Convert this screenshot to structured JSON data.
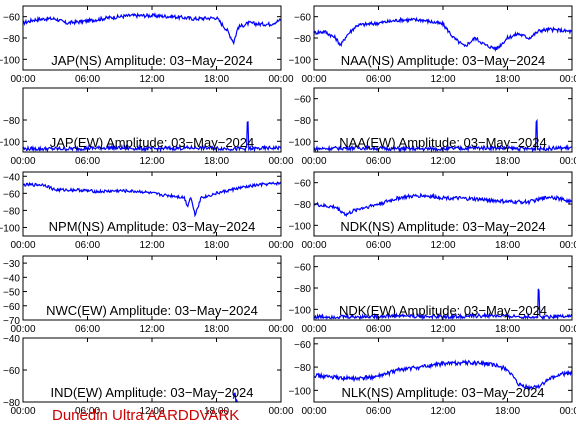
{
  "footer_text": "Dunedin Ultra AARDDVARK",
  "colors": {
    "trace": "#0000ff",
    "axis": "#000000",
    "footer": "#cc0000",
    "background": "#ffffff"
  },
  "chart_data": [
    {
      "type": "line",
      "title": "JAP(NS) Amplitude: 03−May−2024",
      "x_ticks": [
        "00:00",
        "06:00",
        "12:00",
        "18:00",
        "00:00"
      ],
      "xlim_hours": [
        0,
        24
      ],
      "ylim": [
        -110,
        -50
      ],
      "y_ticks": [
        -100,
        -80,
        -60
      ],
      "y_tick_labels": [
        "−100",
        "−80",
        "−60"
      ],
      "series": [
        {
          "x": [
            0,
            1,
            2,
            3,
            4,
            6,
            8,
            10,
            12,
            14,
            16,
            18,
            19,
            19.6,
            20,
            21,
            22,
            23,
            24
          ],
          "values": [
            -66,
            -63,
            -62,
            -62,
            -66,
            -64,
            -61,
            -59,
            -59,
            -60,
            -62,
            -61,
            -73,
            -84,
            -70,
            -66,
            -67,
            -67,
            -63
          ]
        }
      ]
    },
    {
      "type": "line",
      "title": "NAA(NS) Amplitude: 03−May−2024",
      "x_ticks": [
        "00:00",
        "06:00",
        "12:00",
        "18:00",
        "00:00"
      ],
      "xlim_hours": [
        0,
        24
      ],
      "ylim": [
        -110,
        -50
      ],
      "y_ticks": [
        -100,
        -80,
        -60
      ],
      "y_tick_labels": [
        "−100",
        "−80",
        "−60"
      ],
      "series": [
        {
          "x": [
            0,
            1,
            2,
            2.5,
            3,
            4,
            6,
            8,
            10,
            12,
            13,
            14,
            15,
            16,
            17,
            18,
            19,
            20,
            21,
            22,
            24
          ],
          "values": [
            -75,
            -74,
            -80,
            -87,
            -78,
            -68,
            -66,
            -63,
            -63,
            -67,
            -80,
            -88,
            -80,
            -87,
            -90,
            -80,
            -76,
            -80,
            -73,
            -72,
            -74
          ]
        }
      ]
    },
    {
      "type": "line",
      "title": "JAP(EW) Amplitude: 03−May−2024",
      "x_ticks": [
        "00:00",
        "06:00",
        "12:00",
        "18:00",
        "00:00"
      ],
      "xlim_hours": [
        0,
        24
      ],
      "ylim": [
        -110,
        -50
      ],
      "y_ticks": [
        -100,
        -80
      ],
      "y_tick_labels": [
        "−100",
        "−80"
      ],
      "series": [
        {
          "x": [
            0,
            4,
            8,
            12,
            16,
            20,
            20.8,
            20.9,
            21,
            24
          ],
          "values": [
            -107,
            -107,
            -106,
            -107,
            -106,
            -107,
            -107,
            -70,
            -107,
            -106
          ]
        }
      ]
    },
    {
      "type": "line",
      "title": "NAA(EW) Amplitude: 03−May−2024",
      "x_ticks": [
        "00:00",
        "06:00",
        "12:00",
        "18:00",
        "00:00"
      ],
      "xlim_hours": [
        0,
        24
      ],
      "ylim": [
        -110,
        -50
      ],
      "y_ticks": [
        -100,
        -80,
        -60
      ],
      "y_tick_labels": [
        "−100",
        "−80",
        "−60"
      ],
      "series": [
        {
          "x": [
            0,
            4,
            8,
            12,
            16,
            20,
            20.6,
            20.7,
            20.8,
            24
          ],
          "values": [
            -107,
            -106,
            -107,
            -107,
            -106,
            -107,
            -107,
            -68,
            -107,
            -106
          ]
        }
      ]
    },
    {
      "type": "line",
      "title": "NPM(NS) Amplitude: 03−May−2024",
      "x_ticks": [
        "00:00",
        "06:00",
        "12:00",
        "18:00",
        "00:00"
      ],
      "xlim_hours": [
        0,
        24
      ],
      "ylim": [
        -110,
        -35
      ],
      "y_ticks": [
        -100,
        -80,
        -60,
        -40
      ],
      "y_tick_labels": [
        "−100",
        "−80",
        "−60",
        "−40"
      ],
      "series": [
        {
          "x": [
            0,
            2,
            3,
            5,
            7,
            9,
            11,
            13,
            14,
            15,
            15.3,
            15.6,
            16,
            16.6,
            17,
            18,
            20,
            22,
            24
          ],
          "values": [
            -50,
            -50,
            -56,
            -56,
            -58,
            -57,
            -58,
            -62,
            -63,
            -65,
            -75,
            -64,
            -85,
            -64,
            -64,
            -60,
            -54,
            -50,
            -48
          ]
        }
      ]
    },
    {
      "type": "line",
      "title": "NDK(NS) Amplitude: 03−May−2024",
      "x_ticks": [
        "00:00",
        "06:00",
        "12:00",
        "18:00",
        "00:00"
      ],
      "xlim_hours": [
        0,
        24
      ],
      "ylim": [
        -110,
        -50
      ],
      "y_ticks": [
        -100,
        -80,
        -60
      ],
      "y_tick_labels": [
        "−100",
        "−80",
        "−60"
      ],
      "series": [
        {
          "x": [
            0,
            1,
            2,
            3,
            4,
            6,
            8,
            10,
            12,
            14,
            16,
            18,
            20,
            22,
            24
          ],
          "values": [
            -80,
            -82,
            -83,
            -90,
            -85,
            -80,
            -74,
            -72,
            -74,
            -75,
            -76,
            -78,
            -78,
            -73,
            -78
          ]
        }
      ]
    },
    {
      "type": "line",
      "title": "NWC(EW) Amplitude: 03−May−2024",
      "x_ticks": [
        "00:00",
        "06:00",
        "12:00",
        "18:00",
        "00:00"
      ],
      "xlim_hours": [
        0,
        24
      ],
      "ylim": [
        -70,
        -25
      ],
      "y_ticks": [
        -70,
        -60,
        -50,
        -40,
        -30
      ],
      "y_tick_labels": [
        "−70",
        "−60",
        "−50",
        "−40",
        "−30"
      ],
      "series": []
    },
    {
      "type": "line",
      "title": "NDK(EW) Amplitude: 03−May−2024",
      "x_ticks": [
        "00:00",
        "06:00",
        "12:00",
        "18:00",
        "00:00"
      ],
      "xlim_hours": [
        0,
        24
      ],
      "ylim": [
        -110,
        -50
      ],
      "y_ticks": [
        -100,
        -80,
        -60
      ],
      "y_tick_labels": [
        "−100",
        "−80",
        "−60"
      ],
      "series": [
        {
          "x": [
            0,
            4,
            8,
            12,
            16,
            20,
            20.8,
            20.9,
            21,
            24
          ],
          "values": [
            -107,
            -107,
            -106,
            -107,
            -106,
            -107,
            -107,
            -70,
            -107,
            -106
          ]
        }
      ]
    },
    {
      "type": "line",
      "title": "IND(EW) Amplitude: 03−May−2024",
      "x_ticks": [
        "00:00",
        "06:00",
        "12:00",
        "18:00",
        "00:00"
      ],
      "xlim_hours": [
        0,
        24
      ],
      "ylim": [
        -80,
        -40
      ],
      "y_ticks": [
        -80,
        -60
      ],
      "y_tick_labels": [
        "−80",
        "−60"
      ],
      "top_clipped_tick_label": "−40",
      "series": [
        {
          "x": [
            19.5,
            19.7,
            19.8,
            20
          ],
          "values": [
            -80,
            -73,
            -80,
            -80
          ]
        }
      ]
    },
    {
      "type": "line",
      "title": "NLK(NS) Amplitude: 03−May−2024",
      "x_ticks": [
        "00:00",
        "06:00",
        "12:00",
        "18:00",
        "00:00"
      ],
      "xlim_hours": [
        0,
        24
      ],
      "ylim": [
        -110,
        -55
      ],
      "y_ticks": [
        -100,
        -80,
        -60
      ],
      "y_tick_labels": [
        "−100",
        "−80",
        "−60"
      ],
      "series": [
        {
          "x": [
            0,
            2,
            4,
            6,
            8,
            10,
            12,
            14,
            16,
            17,
            18,
            19,
            20,
            21,
            22,
            23,
            24
          ],
          "values": [
            -87,
            -89,
            -90,
            -88,
            -82,
            -80,
            -77,
            -76,
            -77,
            -79,
            -82,
            -95,
            -98,
            -96,
            -90,
            -86,
            -85
          ]
        }
      ]
    }
  ]
}
